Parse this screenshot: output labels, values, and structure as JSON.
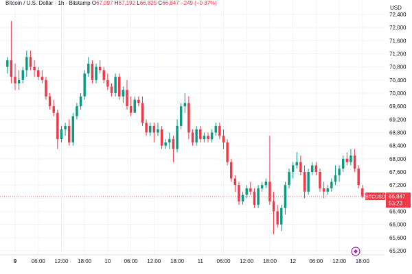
{
  "header": {
    "title": "Bitcoin / U.S. Dollar · 1h · Bitstamp",
    "o_label": "O",
    "o_value": "67,097",
    "h_label": "H",
    "h_value": "67,192",
    "l_label": "L",
    "l_value": "66,825",
    "c_label": "C",
    "c_value": "66,847",
    "change": "−249 (−0.37%)"
  },
  "colors": {
    "up": "#089981",
    "down": "#f23645",
    "axis_text": "#131722",
    "grid": "#f0f3fa",
    "price_line": "#f23645"
  },
  "chart_data": {
    "type": "candlestick",
    "currency_label": "USD",
    "ylim": [
      65100,
      72500
    ],
    "y_ticks": [
      "72,400",
      "72,000",
      "71,600",
      "71,200",
      "70,800",
      "70,400",
      "70,000",
      "69,600",
      "69,200",
      "68,800",
      "68,400",
      "68,000",
      "67,600",
      "67,200",
      "66,800",
      "66,400",
      "66,000",
      "65,600",
      "65,200"
    ],
    "y_tick_values": [
      72400,
      72000,
      71600,
      71200,
      70800,
      70400,
      70000,
      69600,
      69200,
      68800,
      68400,
      68000,
      67600,
      67200,
      66800,
      66400,
      66000,
      65600,
      65200
    ],
    "x_ticks": [
      "9",
      "06:00",
      "12:00",
      "18:00",
      "10",
      "06:00",
      "12:00",
      "18:00",
      "11",
      "06:00",
      "12:00",
      "18:00",
      "12",
      "06:00",
      "12:00",
      "18:00"
    ],
    "x_tick_hours": [
      0,
      6,
      12,
      18,
      24,
      30,
      36,
      42,
      48,
      54,
      60,
      66,
      72,
      78,
      84,
      90
    ],
    "x_tick_bold": [
      true,
      false,
      false,
      false,
      false,
      false,
      false,
      false,
      false,
      false,
      false,
      false,
      false,
      false,
      false,
      false
    ],
    "last_price": {
      "symbol": "BTCUSD",
      "price": 66847,
      "price_label": "66,847",
      "countdown": "53:23"
    },
    "candles": [
      {
        "t": -2,
        "o": 70800,
        "h": 71100,
        "l": 70600,
        "c": 71000
      },
      {
        "t": -1,
        "o": 71000,
        "h": 72200,
        "l": 70300,
        "c": 70500
      },
      {
        "t": 0,
        "o": 70500,
        "h": 70900,
        "l": 70100,
        "c": 70300
      },
      {
        "t": 1,
        "o": 70300,
        "h": 70700,
        "l": 70100,
        "c": 70400
      },
      {
        "t": 2,
        "o": 70400,
        "h": 70800,
        "l": 70300,
        "c": 70700
      },
      {
        "t": 3,
        "o": 70700,
        "h": 71300,
        "l": 70500,
        "c": 71100
      },
      {
        "t": 4,
        "o": 71100,
        "h": 71300,
        "l": 70700,
        "c": 70800
      },
      {
        "t": 5,
        "o": 70800,
        "h": 71000,
        "l": 70500,
        "c": 70700
      },
      {
        "t": 6,
        "o": 70700,
        "h": 70800,
        "l": 70400,
        "c": 70500
      },
      {
        "t": 7,
        "o": 70500,
        "h": 70700,
        "l": 70300,
        "c": 70400
      },
      {
        "t": 8,
        "o": 70400,
        "h": 70500,
        "l": 69800,
        "c": 69900
      },
      {
        "t": 9,
        "o": 69900,
        "h": 70000,
        "l": 69500,
        "c": 69600
      },
      {
        "t": 10,
        "o": 69600,
        "h": 69800,
        "l": 69300,
        "c": 69400
      },
      {
        "t": 11,
        "o": 69400,
        "h": 69500,
        "l": 68300,
        "c": 68600
      },
      {
        "t": 12,
        "o": 68600,
        "h": 69000,
        "l": 68500,
        "c": 68900
      },
      {
        "t": 13,
        "o": 68900,
        "h": 69100,
        "l": 68700,
        "c": 69000
      },
      {
        "t": 14,
        "o": 69000,
        "h": 69200,
        "l": 68400,
        "c": 68500
      },
      {
        "t": 15,
        "o": 68500,
        "h": 69400,
        "l": 68400,
        "c": 69300
      },
      {
        "t": 16,
        "o": 69300,
        "h": 69700,
        "l": 69200,
        "c": 69600
      },
      {
        "t": 17,
        "o": 69600,
        "h": 70000,
        "l": 69500,
        "c": 69900
      },
      {
        "t": 18,
        "o": 69900,
        "h": 70700,
        "l": 69800,
        "c": 70600
      },
      {
        "t": 19,
        "o": 70600,
        "h": 71100,
        "l": 70500,
        "c": 70900
      },
      {
        "t": 20,
        "o": 70900,
        "h": 71000,
        "l": 70300,
        "c": 70400
      },
      {
        "t": 21,
        "o": 70400,
        "h": 70900,
        "l": 70300,
        "c": 70800
      },
      {
        "t": 22,
        "o": 70800,
        "h": 71000,
        "l": 70600,
        "c": 70700
      },
      {
        "t": 23,
        "o": 70700,
        "h": 70800,
        "l": 70300,
        "c": 70400
      },
      {
        "t": 24,
        "o": 70400,
        "h": 70600,
        "l": 70100,
        "c": 70200
      },
      {
        "t": 25,
        "o": 70200,
        "h": 70300,
        "l": 69900,
        "c": 70000
      },
      {
        "t": 26,
        "o": 70000,
        "h": 70600,
        "l": 69900,
        "c": 70500
      },
      {
        "t": 27,
        "o": 70500,
        "h": 70600,
        "l": 69800,
        "c": 69900
      },
      {
        "t": 28,
        "o": 69900,
        "h": 70200,
        "l": 69700,
        "c": 70100
      },
      {
        "t": 29,
        "o": 70100,
        "h": 70400,
        "l": 69500,
        "c": 69600
      },
      {
        "t": 30,
        "o": 69600,
        "h": 69900,
        "l": 69300,
        "c": 69400
      },
      {
        "t": 31,
        "o": 69400,
        "h": 69900,
        "l": 69400,
        "c": 69800
      },
      {
        "t": 32,
        "o": 69800,
        "h": 69900,
        "l": 69600,
        "c": 69700
      },
      {
        "t": 33,
        "o": 69700,
        "h": 69900,
        "l": 69000,
        "c": 69100
      },
      {
        "t": 34,
        "o": 69100,
        "h": 69200,
        "l": 68700,
        "c": 68800
      },
      {
        "t": 35,
        "o": 68800,
        "h": 69100,
        "l": 68700,
        "c": 69000
      },
      {
        "t": 36,
        "o": 69000,
        "h": 69100,
        "l": 68500,
        "c": 68800
      },
      {
        "t": 37,
        "o": 68800,
        "h": 69100,
        "l": 68700,
        "c": 68900
      },
      {
        "t": 38,
        "o": 68900,
        "h": 69000,
        "l": 68300,
        "c": 68400
      },
      {
        "t": 39,
        "o": 68400,
        "h": 68600,
        "l": 68300,
        "c": 68500
      },
      {
        "t": 40,
        "o": 68500,
        "h": 68800,
        "l": 68300,
        "c": 68600
      },
      {
        "t": 41,
        "o": 68600,
        "h": 68700,
        "l": 67900,
        "c": 68300
      },
      {
        "t": 42,
        "o": 68300,
        "h": 69200,
        "l": 68200,
        "c": 69000
      },
      {
        "t": 43,
        "o": 69000,
        "h": 69700,
        "l": 68900,
        "c": 69600
      },
      {
        "t": 44,
        "o": 69600,
        "h": 70000,
        "l": 69400,
        "c": 69700
      },
      {
        "t": 45,
        "o": 69700,
        "h": 69900,
        "l": 68600,
        "c": 68800
      },
      {
        "t": 46,
        "o": 68800,
        "h": 68900,
        "l": 68400,
        "c": 68500
      },
      {
        "t": 47,
        "o": 68500,
        "h": 69000,
        "l": 68400,
        "c": 68900
      },
      {
        "t": 48,
        "o": 68900,
        "h": 69000,
        "l": 68500,
        "c": 68600
      },
      {
        "t": 49,
        "o": 68600,
        "h": 68800,
        "l": 68500,
        "c": 68700
      },
      {
        "t": 50,
        "o": 68700,
        "h": 68800,
        "l": 68500,
        "c": 68600
      },
      {
        "t": 51,
        "o": 68600,
        "h": 68900,
        "l": 68500,
        "c": 68800
      },
      {
        "t": 52,
        "o": 68800,
        "h": 69100,
        "l": 68700,
        "c": 69000
      },
      {
        "t": 53,
        "o": 69000,
        "h": 69100,
        "l": 68600,
        "c": 68700
      },
      {
        "t": 54,
        "o": 68700,
        "h": 68900,
        "l": 68300,
        "c": 68500
      },
      {
        "t": 55,
        "o": 68500,
        "h": 68600,
        "l": 67800,
        "c": 67900
      },
      {
        "t": 56,
        "o": 67900,
        "h": 68000,
        "l": 67300,
        "c": 67400
      },
      {
        "t": 57,
        "o": 67400,
        "h": 67500,
        "l": 67000,
        "c": 67200
      },
      {
        "t": 58,
        "o": 67200,
        "h": 67300,
        "l": 66600,
        "c": 66700
      },
      {
        "t": 59,
        "o": 66700,
        "h": 67000,
        "l": 66600,
        "c": 66900
      },
      {
        "t": 60,
        "o": 66900,
        "h": 67200,
        "l": 66800,
        "c": 67100
      },
      {
        "t": 61,
        "o": 67100,
        "h": 67300,
        "l": 66900,
        "c": 67000
      },
      {
        "t": 62,
        "o": 67000,
        "h": 67100,
        "l": 66500,
        "c": 66600
      },
      {
        "t": 63,
        "o": 66600,
        "h": 67200,
        "l": 66500,
        "c": 67100
      },
      {
        "t": 64,
        "o": 67100,
        "h": 67300,
        "l": 67000,
        "c": 67200
      },
      {
        "t": 65,
        "o": 67200,
        "h": 67400,
        "l": 67100,
        "c": 67300
      },
      {
        "t": 66,
        "o": 67300,
        "h": 68700,
        "l": 66600,
        "c": 66700
      },
      {
        "t": 67,
        "o": 66700,
        "h": 67000,
        "l": 65700,
        "c": 66400
      },
      {
        "t": 68,
        "o": 66400,
        "h": 66600,
        "l": 65900,
        "c": 66000
      },
      {
        "t": 69,
        "o": 66000,
        "h": 66600,
        "l": 65800,
        "c": 66500
      },
      {
        "t": 70,
        "o": 66500,
        "h": 67300,
        "l": 66300,
        "c": 67200
      },
      {
        "t": 71,
        "o": 67200,
        "h": 67700,
        "l": 67100,
        "c": 67600
      },
      {
        "t": 72,
        "o": 67600,
        "h": 67900,
        "l": 67400,
        "c": 67800
      },
      {
        "t": 73,
        "o": 67800,
        "h": 68200,
        "l": 67700,
        "c": 67900
      },
      {
        "t": 74,
        "o": 67900,
        "h": 68100,
        "l": 67500,
        "c": 67600
      },
      {
        "t": 75,
        "o": 67600,
        "h": 67800,
        "l": 66800,
        "c": 67000
      },
      {
        "t": 76,
        "o": 67000,
        "h": 67700,
        "l": 66900,
        "c": 67600
      },
      {
        "t": 77,
        "o": 67600,
        "h": 67900,
        "l": 67500,
        "c": 67800
      },
      {
        "t": 78,
        "o": 67800,
        "h": 67900,
        "l": 67500,
        "c": 67600
      },
      {
        "t": 79,
        "o": 67600,
        "h": 67700,
        "l": 67000,
        "c": 67100
      },
      {
        "t": 80,
        "o": 67100,
        "h": 67300,
        "l": 66800,
        "c": 67000
      },
      {
        "t": 81,
        "o": 67000,
        "h": 67200,
        "l": 66900,
        "c": 67100
      },
      {
        "t": 82,
        "o": 67100,
        "h": 67400,
        "l": 67000,
        "c": 67300
      },
      {
        "t": 83,
        "o": 67300,
        "h": 67800,
        "l": 67200,
        "c": 67500
      },
      {
        "t": 84,
        "o": 67500,
        "h": 67800,
        "l": 67300,
        "c": 67700
      },
      {
        "t": 85,
        "o": 67700,
        "h": 68100,
        "l": 67600,
        "c": 68000
      },
      {
        "t": 86,
        "o": 68000,
        "h": 68200,
        "l": 67800,
        "c": 67900
      },
      {
        "t": 87,
        "o": 67900,
        "h": 68300,
        "l": 67800,
        "c": 68100
      },
      {
        "t": 88,
        "o": 68100,
        "h": 68300,
        "l": 67600,
        "c": 67700
      },
      {
        "t": 89,
        "o": 67700,
        "h": 67800,
        "l": 67100,
        "c": 67200
      },
      {
        "t": 90,
        "o": 67100,
        "h": 67200,
        "l": 66800,
        "c": 66847
      }
    ]
  }
}
